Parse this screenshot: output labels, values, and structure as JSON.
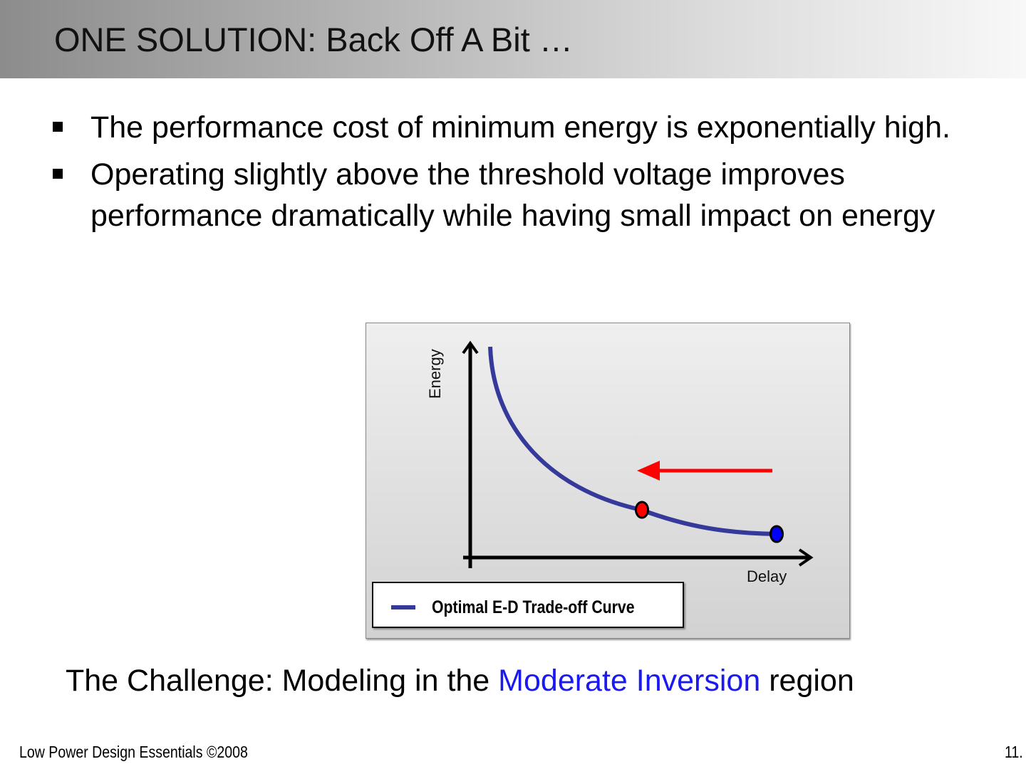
{
  "title": "ONE SOLUTION: Back Off A Bit …",
  "bullets": [
    "The performance cost of minimum energy is exponentially high.",
    "Operating slightly above the threshold voltage improves performance dramatically while having small impact on energy"
  ],
  "diagram": {
    "y_axis_label": "Energy",
    "x_axis_label": "Delay",
    "legend_label": "Optimal E-D Trade-off Curve",
    "colors": {
      "curve": "#35399a",
      "arrow": "#ff0000",
      "new_point": "#ff0000",
      "old_point": "#0000ff"
    }
  },
  "challenge": {
    "prefix": "The Challenge: Modeling in the ",
    "highlight": "Moderate Inversion",
    "suffix": " region",
    "highlight_color": "#1a1af0"
  },
  "footer": {
    "left": "Low Power Design Essentials ©2008",
    "page": "11."
  }
}
